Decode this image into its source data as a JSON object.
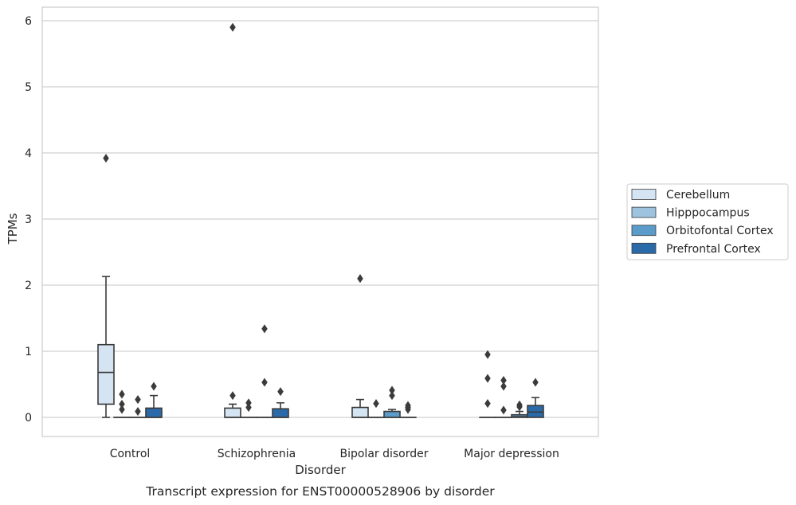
{
  "chart_data": {
    "type": "boxplot",
    "title": "",
    "caption": "Transcript expression for ENST00000528906 by disorder",
    "xlabel": "Disorder",
    "ylabel": "TPMs",
    "ylim": [
      -0.29,
      6.2
    ],
    "yticks": [
      0,
      1,
      2,
      3,
      4,
      5,
      6
    ],
    "grid": true,
    "legend_position": "right",
    "categories": [
      "Control",
      "Schizophrenia",
      "Bipolar disorder",
      "Major depression"
    ],
    "series": [
      {
        "name": "Cerebellum",
        "color": "#d4e4f2",
        "boxes": [
          {
            "q1": 0.2,
            "median": 0.68,
            "q3": 1.1,
            "whisker_low": 0.0,
            "whisker_high": 2.13,
            "outliers": [
              3.92
            ]
          },
          {
            "q1": 0.0,
            "median": 0.0,
            "q3": 0.14,
            "whisker_low": 0.0,
            "whisker_high": 0.2,
            "outliers": [
              5.9,
              0.33
            ]
          },
          {
            "q1": 0.0,
            "median": 0.0,
            "q3": 0.15,
            "whisker_low": 0.0,
            "whisker_high": 0.27,
            "outliers": [
              2.1
            ]
          },
          {
            "q1": 0.0,
            "median": 0.0,
            "q3": 0.0,
            "whisker_low": 0.0,
            "whisker_high": 0.0,
            "outliers": [
              0.95,
              0.59,
              0.21
            ]
          }
        ]
      },
      {
        "name": "Hipppocampus",
        "color": "#9dc3de",
        "boxes": [
          {
            "q1": 0.0,
            "median": 0.0,
            "q3": 0.0,
            "whisker_low": 0.0,
            "whisker_high": 0.0,
            "outliers": [
              0.35,
              0.2,
              0.12
            ]
          },
          {
            "q1": 0.0,
            "median": 0.0,
            "q3": 0.0,
            "whisker_low": 0.0,
            "whisker_high": 0.0,
            "outliers": [
              0.22,
              0.15
            ]
          },
          {
            "q1": 0.0,
            "median": 0.0,
            "q3": 0.0,
            "whisker_low": 0.0,
            "whisker_high": 0.0,
            "outliers": [
              0.21
            ]
          },
          {
            "q1": 0.0,
            "median": 0.0,
            "q3": 0.0,
            "whisker_low": 0.0,
            "whisker_high": 0.0,
            "outliers": [
              0.56,
              0.47,
              0.11
            ]
          }
        ]
      },
      {
        "name": "Orbitofontal Cortex",
        "color": "#5a9bc9",
        "boxes": [
          {
            "q1": 0.0,
            "median": 0.0,
            "q3": 0.0,
            "whisker_low": 0.0,
            "whisker_high": 0.0,
            "outliers": [
              0.27,
              0.09
            ]
          },
          {
            "q1": 0.0,
            "median": 0.0,
            "q3": 0.0,
            "whisker_low": 0.0,
            "whisker_high": 0.0,
            "outliers": [
              1.34,
              0.53
            ]
          },
          {
            "q1": 0.0,
            "median": 0.0,
            "q3": 0.09,
            "whisker_low": 0.0,
            "whisker_high": 0.12,
            "outliers": [
              0.41,
              0.33
            ]
          },
          {
            "q1": 0.0,
            "median": 0.01,
            "q3": 0.04,
            "whisker_low": 0.0,
            "whisker_high": 0.09,
            "outliers": [
              0.19,
              0.16
            ]
          }
        ]
      },
      {
        "name": "Prefrontal Cortex",
        "color": "#2b6aa8",
        "boxes": [
          {
            "q1": 0.0,
            "median": 0.0,
            "q3": 0.14,
            "whisker_low": 0.0,
            "whisker_high": 0.33,
            "outliers": [
              0.47
            ]
          },
          {
            "q1": 0.0,
            "median": 0.0,
            "q3": 0.13,
            "whisker_low": 0.0,
            "whisker_high": 0.22,
            "outliers": [
              0.39
            ]
          },
          {
            "q1": 0.0,
            "median": 0.0,
            "q3": 0.0,
            "whisker_low": 0.0,
            "whisker_high": 0.0,
            "outliers": [
              0.18,
              0.15,
              0.12
            ]
          },
          {
            "q1": 0.0,
            "median": 0.08,
            "q3": 0.18,
            "whisker_low": 0.0,
            "whisker_high": 0.3,
            "outliers": [
              0.53
            ]
          }
        ]
      }
    ]
  }
}
